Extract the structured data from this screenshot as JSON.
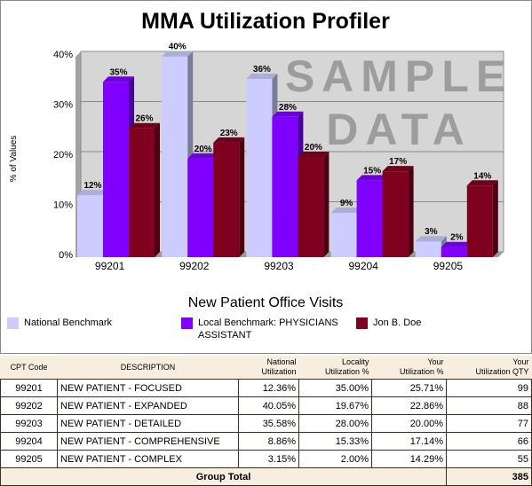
{
  "chart_data": {
    "type": "bar",
    "title": "MMA Utilization Profiler",
    "xlabel": "New Patient Office Visits",
    "ylabel": "% of Values",
    "ylim": [
      0,
      40
    ],
    "yticks": [
      "0%",
      "10%",
      "20%",
      "30%",
      "40%"
    ],
    "grid": true,
    "legend_position": "bottom",
    "categories": [
      "99201",
      "99202",
      "99203",
      "99204",
      "99205"
    ],
    "series": [
      {
        "name": "National Benchmark",
        "color": "#ccccff",
        "values": [
          12.36,
          40.05,
          35.58,
          8.86,
          3.15
        ],
        "labels": [
          "12%",
          "40%",
          "36%",
          "9%",
          "3%"
        ]
      },
      {
        "name": "Local Benchmark: PHYSICIANS ASSISTANT",
        "color": "#7f00ff",
        "values": [
          35.0,
          19.67,
          28.0,
          15.33,
          2.0
        ],
        "labels": [
          "35%",
          "20%",
          "28%",
          "15%",
          "2%"
        ]
      },
      {
        "name": "Jon B. Doe",
        "color": "#800020",
        "values": [
          25.71,
          22.86,
          20.0,
          17.14,
          14.29
        ],
        "labels": [
          "26%",
          "23%",
          "20%",
          "17%",
          "14%"
        ]
      }
    ],
    "watermark": [
      "SAMPLE",
      "DATA"
    ]
  },
  "legend": [
    {
      "label": "National Benchmark",
      "color": "#ccccff"
    },
    {
      "label": "Local Benchmark: PHYSICIANS ASSISTANT",
      "color": "#7f00ff"
    },
    {
      "label": "Jon B. Doe",
      "color": "#800020"
    }
  ],
  "table": {
    "headers": {
      "cpt_code": "CPT Code",
      "description": "DESCRIPTION",
      "national_1": "National",
      "national_2": "Utilization",
      "locality_1": "Locality",
      "locality_2": "Utilization %",
      "your_util_1": "Your",
      "your_util_2": "Utilization %",
      "your_qty_1": "Your",
      "your_qty_2": "Utilization QTY"
    },
    "rows": [
      {
        "code": "99201",
        "description": "NEW PATIENT - FOCUSED",
        "national": "12.36%",
        "locality": "35.00%",
        "your_util": "25.71%",
        "qty": "99"
      },
      {
        "code": "99202",
        "description": "NEW PATIENT - EXPANDED",
        "national": "40.05%",
        "locality": "19.67%",
        "your_util": "22.86%",
        "qty": "88"
      },
      {
        "code": "99203",
        "description": "NEW PATIENT - DETAILED",
        "national": "35.58%",
        "locality": "28.00%",
        "your_util": "20.00%",
        "qty": "77"
      },
      {
        "code": "99204",
        "description": "NEW PATIENT - COMPREHENSIVE",
        "national": "8.86%",
        "locality": "15.33%",
        "your_util": "17.14%",
        "qty": "66"
      },
      {
        "code": "99205",
        "description": "NEW PATIENT - COMPLEX",
        "national": "3.15%",
        "locality": "2.00%",
        "your_util": "14.29%",
        "qty": "55"
      }
    ],
    "total_label": "Group Total",
    "total_qty": "385"
  }
}
